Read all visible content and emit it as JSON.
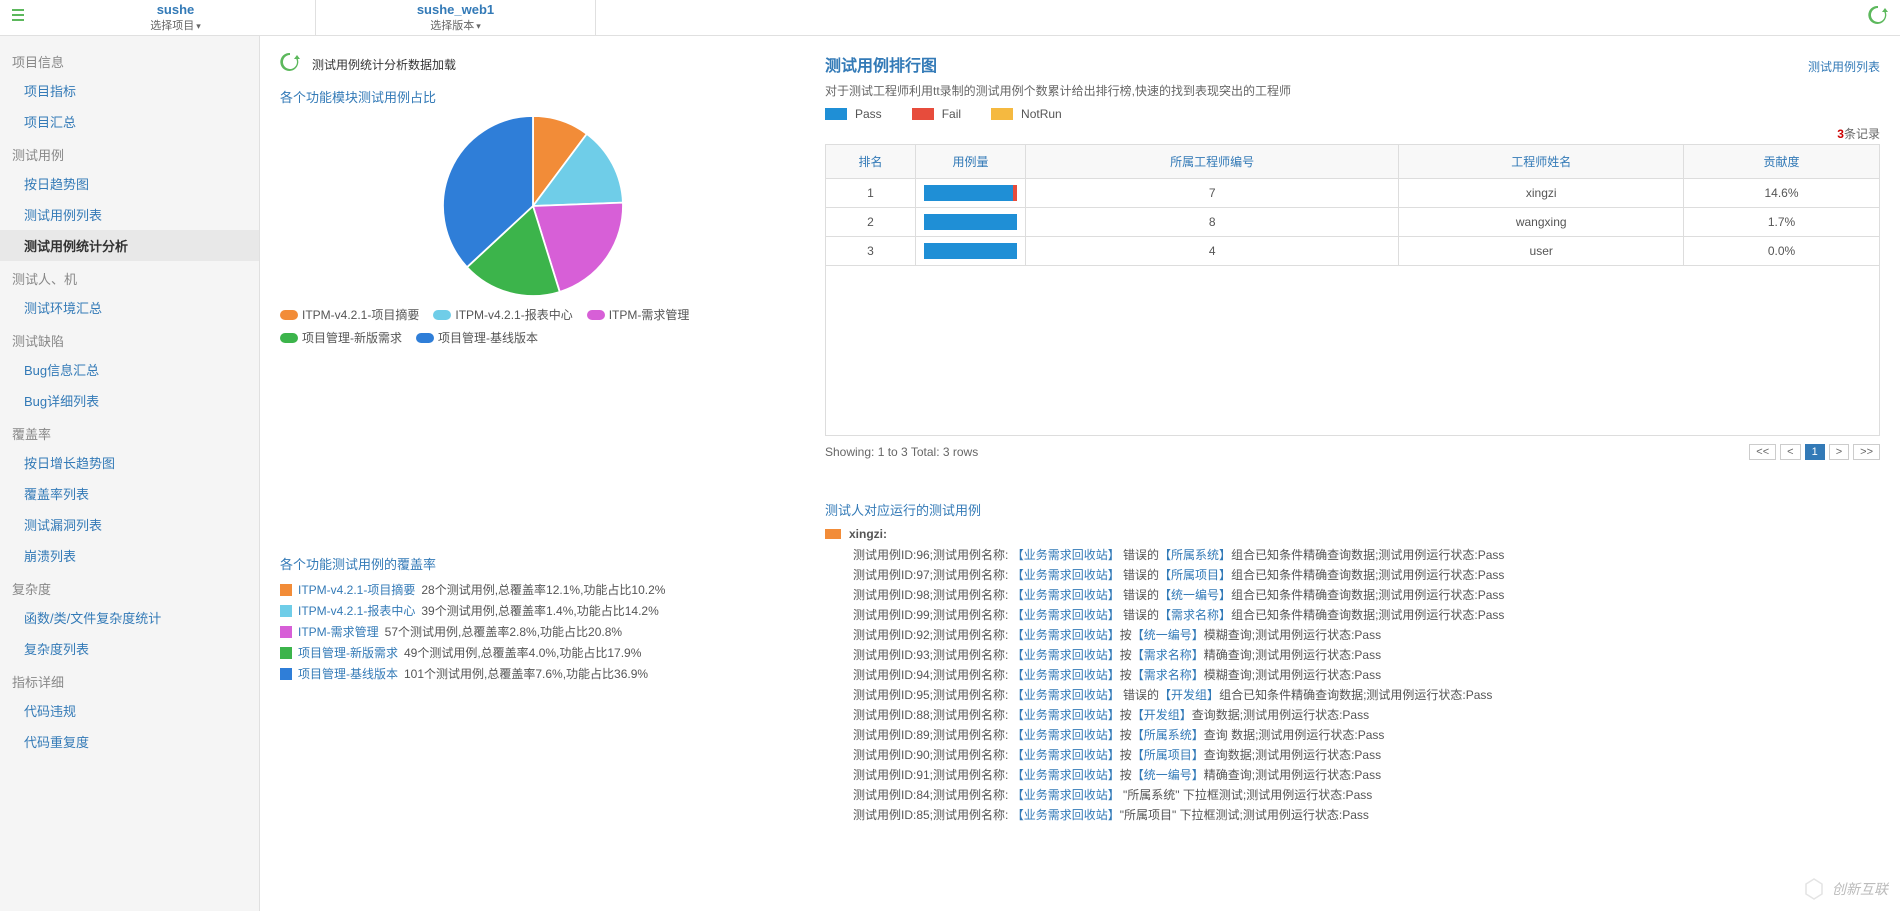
{
  "topbar": {
    "tabs": [
      {
        "title": "sushe",
        "sub": "选择项目"
      },
      {
        "title": "sushe_web1",
        "sub": "选择版本"
      }
    ]
  },
  "sidebar": {
    "sections": [
      {
        "title": "项目信息",
        "items": [
          "项目指标",
          "项目汇总"
        ]
      },
      {
        "title": "测试用例",
        "items": [
          "按日趋势图",
          "测试用例列表",
          "测试用例统计分析"
        ]
      },
      {
        "title": "测试人、机",
        "items": [
          "测试环境汇总"
        ]
      },
      {
        "title": "测试缺陷",
        "items": [
          "Bug信息汇总",
          "Bug详细列表"
        ]
      },
      {
        "title": "覆盖率",
        "items": [
          "按日增长趋势图",
          "覆盖率列表",
          "测试漏洞列表",
          "崩溃列表"
        ]
      },
      {
        "title": "复杂度",
        "items": [
          "函数/类/文件复杂度统计",
          "复杂度列表"
        ]
      },
      {
        "title": "指标详细",
        "items": [
          "代码违规",
          "代码重复度"
        ]
      }
    ],
    "active": "测试用例统计分析"
  },
  "left": {
    "reload_text": "测试用例统计分析数据加载",
    "pie_title": "各个功能模块测试用例占比",
    "pie_slices": [
      {
        "label": "ITPM-v4.2.1-项目摘要",
        "color": "#f28c38",
        "value": 10.2
      },
      {
        "label": "ITPM-v4.2.1-报表中心",
        "color": "#6fcde8",
        "value": 14.2
      },
      {
        "label": "ITPM-需求管理",
        "color": "#d75fd7",
        "value": 20.8
      },
      {
        "label": "项目管理-新版需求",
        "color": "#3cb44b",
        "value": 17.9
      },
      {
        "label": "项目管理-基线版本",
        "color": "#2f7ed8",
        "value": 36.9
      }
    ],
    "cov_title": "各个功能测试用例的覆盖率",
    "coverage": [
      {
        "color": "#f28c38",
        "label": "ITPM-v4.2.1-项目摘要",
        "text": "28个测试用例,总覆盖率12.1%,功能占比10.2%"
      },
      {
        "color": "#6fcde8",
        "label": "ITPM-v4.2.1-报表中心",
        "text": "39个测试用例,总覆盖率1.4%,功能占比14.2%"
      },
      {
        "color": "#d75fd7",
        "label": "ITPM-需求管理",
        "text": "57个测试用例,总覆盖率2.8%,功能占比20.8%"
      },
      {
        "color": "#3cb44b",
        "label": "项目管理-新版需求",
        "text": "49个测试用例,总覆盖率4.0%,功能占比17.9%"
      },
      {
        "color": "#2f7ed8",
        "label": "项目管理-基线版本",
        "text": "101个测试用例,总覆盖率7.6%,功能占比36.9%"
      }
    ]
  },
  "right": {
    "title": "测试用例排行图",
    "link": "测试用例列表",
    "desc": "对于测试工程师利用tt录制的测试用例个数累计给出排行榜,快速的找到表现突出的工程师",
    "legend": [
      {
        "label": "Pass",
        "color": "#1f8fd6"
      },
      {
        "label": "Fail",
        "color": "#e74c3c"
      },
      {
        "label": "NotRun",
        "color": "#f5b940"
      }
    ],
    "record_count": "3",
    "record_suffix": "条记录",
    "columns": [
      "排名",
      "用例量",
      "所属工程师编号",
      "工程师姓名",
      "贡献度"
    ],
    "rows": [
      {
        "rank": "1",
        "bar_pass": 96,
        "bar_fail": 4,
        "engid": "7",
        "name": "xingzi",
        "contrib": "14.6%"
      },
      {
        "rank": "2",
        "bar_pass": 100,
        "bar_fail": 0,
        "engid": "8",
        "name": "wangxing",
        "contrib": "1.7%"
      },
      {
        "rank": "3",
        "bar_pass": 100,
        "bar_fail": 0,
        "engid": "4",
        "name": "user",
        "contrib": "0.0%"
      }
    ],
    "footer": "Showing: 1 to 3 Total: 3 rows",
    "pager": [
      "<<",
      "<",
      "1",
      ">",
      ">>"
    ],
    "pager_active": "1",
    "tester_title": "测试人对应运行的测试用例",
    "tester_name": "xingzi:",
    "cases": [
      "测试用例ID:96;测试用例名称: 【业务需求回收站】 错误的【所属系统】组合已知条件精确查询数据;测试用例运行状态:Pass",
      "测试用例ID:97;测试用例名称: 【业务需求回收站】 错误的【所属项目】组合已知条件精确查询数据;测试用例运行状态:Pass",
      "测试用例ID:98;测试用例名称: 【业务需求回收站】 错误的【统一编号】组合已知条件精确查询数据;测试用例运行状态:Pass",
      "测试用例ID:99;测试用例名称: 【业务需求回收站】 错误的【需求名称】组合已知条件精确查询数据;测试用例运行状态:Pass",
      "测试用例ID:92;测试用例名称: 【业务需求回收站】按【统一编号】模糊查询;测试用例运行状态:Pass",
      "测试用例ID:93;测试用例名称: 【业务需求回收站】按【需求名称】精确查询;测试用例运行状态:Pass",
      "测试用例ID:94;测试用例名称: 【业务需求回收站】按【需求名称】模糊查询;测试用例运行状态:Pass",
      "测试用例ID:95;测试用例名称: 【业务需求回收站】 错误的【开发组】组合已知条件精确查询数据;测试用例运行状态:Pass",
      "测试用例ID:88;测试用例名称: 【业务需求回收站】按【开发组】查询数据;测试用例运行状态:Pass",
      "测试用例ID:89;测试用例名称: 【业务需求回收站】按【所属系统】查询 数据;测试用例运行状态:Pass",
      "测试用例ID:90;测试用例名称: 【业务需求回收站】按【所属项目】查询数据;测试用例运行状态:Pass",
      "测试用例ID:91;测试用例名称: 【业务需求回收站】按【统一编号】精确查询;测试用例运行状态:Pass",
      "测试用例ID:84;测试用例名称: 【业务需求回收站】 \"所属系统\" 下拉框测试;测试用例运行状态:Pass",
      "测试用例ID:85;测试用例名称: 【业务需求回收站】\"所属项目\" 下拉框测试;测试用例运行状态:Pass"
    ]
  },
  "watermark": "创新互联"
}
